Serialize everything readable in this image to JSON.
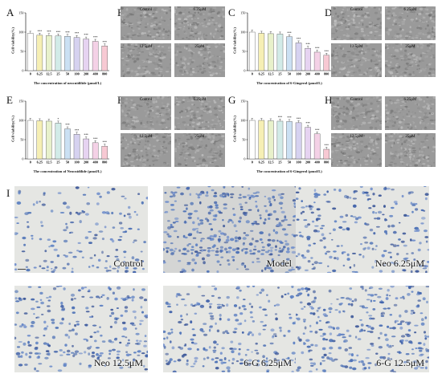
{
  "panels": {
    "A": "A",
    "B": "B",
    "C": "C",
    "D": "D",
    "E": "E",
    "F": "F",
    "G": "G",
    "H": "H",
    "I": "I"
  },
  "micro_labels": [
    "Control",
    "6.25μM",
    "12.5μM",
    "25μM"
  ],
  "stain_labels": [
    "Control",
    "Model",
    "Neo 6.25μM",
    "Neo 12.5μM",
    "6-G 6.25μM",
    "6-G 12.5μM"
  ],
  "bar_colors": [
    "#ffffff",
    "#f6efb4",
    "#e8f1cb",
    "#d2ebe8",
    "#cbe0f3",
    "#d6d2f0",
    "#e6d3f1",
    "#f4d1e6",
    "#f7c9d3"
  ],
  "chart_data": [
    {
      "type": "bar",
      "title": "",
      "ylabel": "Cell viability(%)",
      "xlabel": "The concentration of neocnidilide (μmol/L)",
      "categories": [
        "0",
        "6.25",
        "12.5",
        "25",
        "50",
        "100",
        "200",
        "400",
        "800"
      ],
      "values": [
        97,
        92,
        91,
        90,
        89,
        86,
        82,
        76,
        64
      ],
      "ylim": [
        0,
        150
      ],
      "yticks": [
        "0",
        "50",
        "100",
        "150"
      ],
      "sig": [
        "",
        "***",
        "***",
        "***",
        "***",
        "***",
        "***",
        "***",
        "***"
      ]
    },
    {
      "type": "bar",
      "title": "",
      "ylabel": "Cell viability(%)",
      "xlabel": "The concentration of 6-Gingerol (μmol/L)",
      "categories": [
        "0",
        "6.25",
        "12.5",
        "25",
        "50",
        "100",
        "200",
        "400",
        "800"
      ],
      "values": [
        100,
        97,
        96,
        95,
        88,
        72,
        58,
        48,
        40
      ],
      "ylim": [
        0,
        150
      ],
      "yticks": [
        "0",
        "50",
        "100",
        "150"
      ],
      "sig": [
        "",
        "",
        "",
        "",
        "***",
        "***",
        "***",
        "***",
        "***"
      ]
    },
    {
      "type": "bar",
      "title": "",
      "ylabel": "Cell viability(%)",
      "xlabel": "The concentration of Neocnidilide (μmol/L)",
      "categories": [
        "0",
        "6.25",
        "12.5",
        "25",
        "50",
        "100",
        "200",
        "400",
        "800"
      ],
      "values": [
        100,
        99,
        98,
        93,
        78,
        64,
        52,
        42,
        33
      ],
      "ylim": [
        0,
        150
      ],
      "yticks": [
        "0",
        "50",
        "100",
        "150"
      ],
      "sig": [
        "",
        "",
        "",
        "*",
        "***",
        "***",
        "***",
        "***",
        "***"
      ]
    },
    {
      "type": "bar",
      "title": "",
      "ylabel": "Cell viability(%)",
      "xlabel": "The concentration of 6-Gingerol (μmol/L)",
      "categories": [
        "0",
        "6.25",
        "12.5",
        "25",
        "50",
        "100",
        "200",
        "400",
        "800"
      ],
      "values": [
        100,
        100,
        99,
        98,
        97,
        94,
        82,
        65,
        25
      ],
      "ylim": [
        0,
        150
      ],
      "yticks": [
        "0",
        "50",
        "100",
        "150"
      ],
      "sig": [
        "",
        "",
        "",
        "***",
        "***",
        "***",
        "***",
        "***",
        "***"
      ]
    }
  ]
}
